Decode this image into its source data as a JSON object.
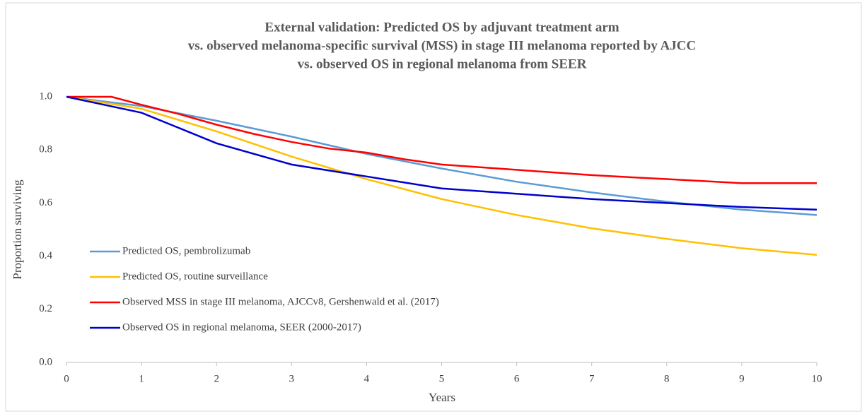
{
  "chart_data": {
    "type": "line",
    "title": [
      "External validation: Predicted OS by adjuvant treatment arm",
      "vs. observed melanoma-specific survival (MSS) in stage III melanoma reported by AJCC",
      "vs. observed OS in regional melanoma from SEER"
    ],
    "xlabel": "Years",
    "ylabel": "Proportion surviving",
    "xlim": [
      0,
      10
    ],
    "xticks": [
      0,
      1,
      2,
      3,
      4,
      5,
      6,
      7,
      8,
      9,
      10
    ],
    "ylim": [
      0,
      1
    ],
    "yticks": [
      {
        "value": 0,
        "label": "0.0"
      },
      {
        "value": 0.2,
        "label": "0.2"
      },
      {
        "value": 0.4,
        "label": "0.4"
      },
      {
        "value": 0.6,
        "label": "0.6"
      },
      {
        "value": 0.8,
        "label": "0.8"
      },
      {
        "value": 1,
        "label": "1.0"
      }
    ],
    "grid": false,
    "legend": "lower left",
    "series": [
      {
        "name": "Predicted OS, pembrolizumab",
        "color": "#5b9bd5",
        "x": [
          0,
          1,
          2,
          3,
          4,
          5,
          6,
          7,
          8,
          9,
          10
        ],
        "values": [
          1.0,
          0.965,
          0.91,
          0.85,
          0.785,
          0.73,
          0.68,
          0.64,
          0.605,
          0.575,
          0.555
        ]
      },
      {
        "name": "Predicted OS, routine surveillance",
        "color": "#ffc000",
        "x": [
          0,
          1,
          2,
          3,
          4,
          5,
          6,
          7,
          8,
          9,
          10
        ],
        "values": [
          1.0,
          0.955,
          0.87,
          0.775,
          0.69,
          0.615,
          0.555,
          0.505,
          0.465,
          0.43,
          0.405
        ]
      },
      {
        "name": "Observed MSS in stage III melanoma, AJCCv8, Gershenwald et al. (2017)",
        "color": "#ff0000",
        "x": [
          0,
          0.6,
          1,
          1.5,
          2,
          2.5,
          3,
          3.5,
          4,
          4.5,
          5,
          6,
          7,
          8,
          9,
          10
        ],
        "values": [
          1.0,
          1.0,
          0.97,
          0.935,
          0.895,
          0.86,
          0.83,
          0.805,
          0.79,
          0.765,
          0.745,
          0.725,
          0.705,
          0.69,
          0.675,
          0.675
        ]
      },
      {
        "name": "Observed OS in regional melanoma, SEER (2000-2017)",
        "color": "#0000cc",
        "x": [
          0,
          1,
          2,
          3,
          4,
          5,
          6,
          7,
          8,
          9,
          10
        ],
        "values": [
          1.0,
          0.94,
          0.825,
          0.745,
          0.7,
          0.655,
          0.635,
          0.615,
          0.6,
          0.585,
          0.575
        ]
      }
    ]
  }
}
